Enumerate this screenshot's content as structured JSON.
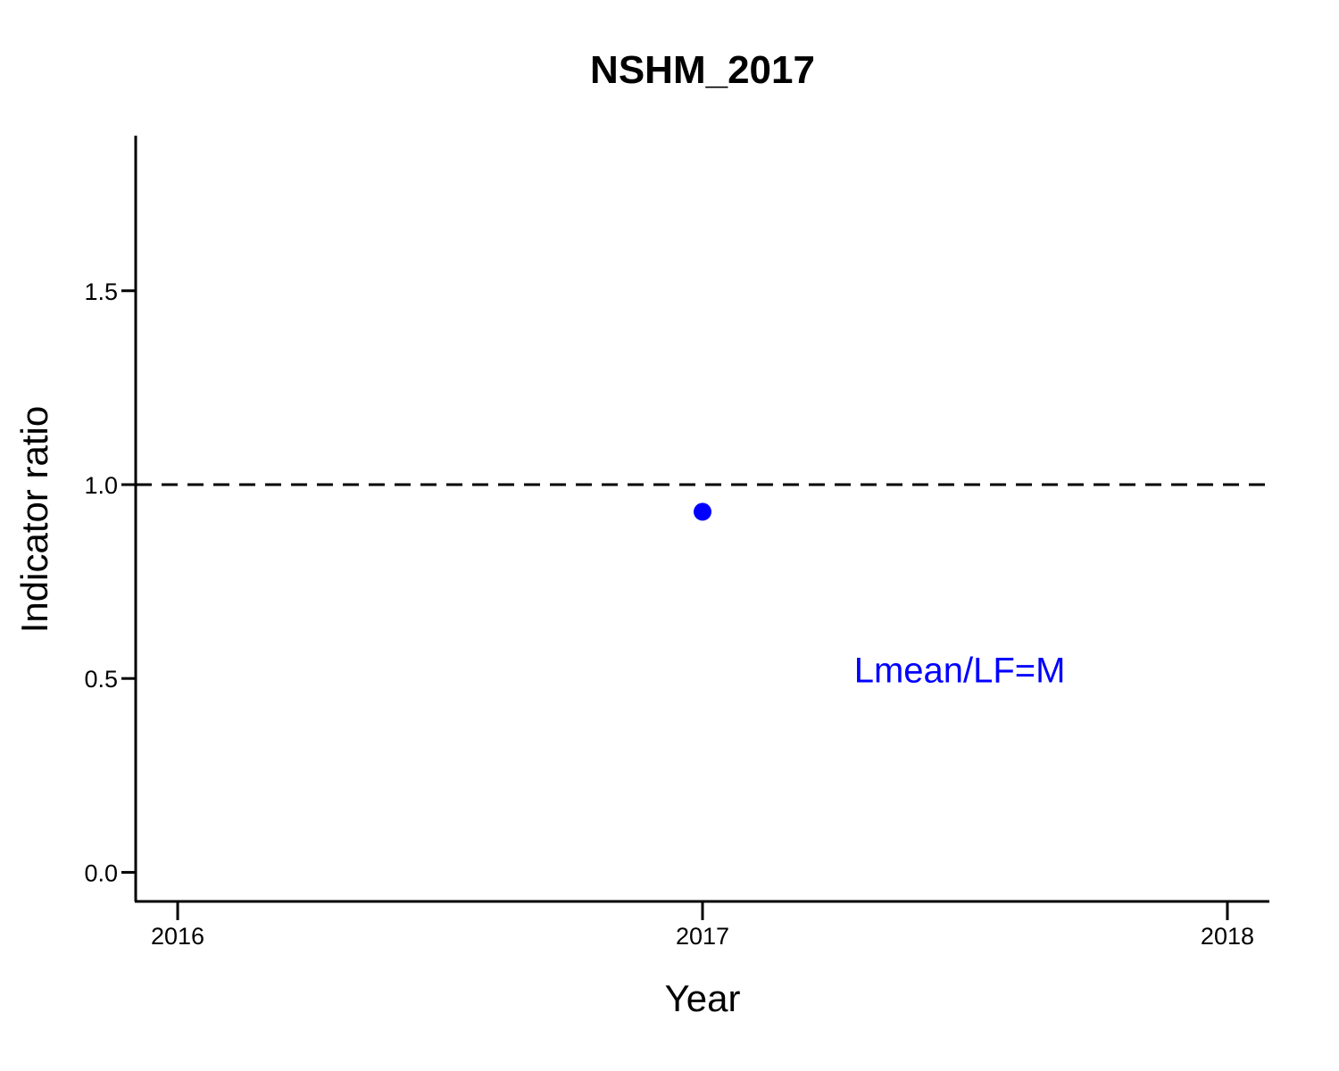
{
  "chart_data": {
    "type": "scatter",
    "title": "NSHM_2017",
    "xlabel": "Year",
    "ylabel": "Indicator ratio",
    "xlim": [
      2015.92,
      2018.08
    ],
    "ylim": [
      -0.075,
      1.9
    ],
    "x_ticks": [
      2016,
      2017,
      2018
    ],
    "x_tick_labels": [
      "2016",
      "2017",
      "2018"
    ],
    "y_ticks": [
      0.0,
      0.5,
      1.0,
      1.5
    ],
    "y_tick_labels": [
      "0.0",
      "0.5",
      "1.0",
      "1.5"
    ],
    "grid": false,
    "reference_line": {
      "y": 1.0,
      "style": "dashed",
      "color": "#000000"
    },
    "series": [
      {
        "name": "Lmean/LF=M",
        "x": [
          2017
        ],
        "y": [
          0.93
        ],
        "color": "#0000ff"
      }
    ],
    "annotation": {
      "text": "Lmean/LF=M",
      "x": 2017.49,
      "y": 0.49,
      "color": "#0000ff"
    }
  }
}
